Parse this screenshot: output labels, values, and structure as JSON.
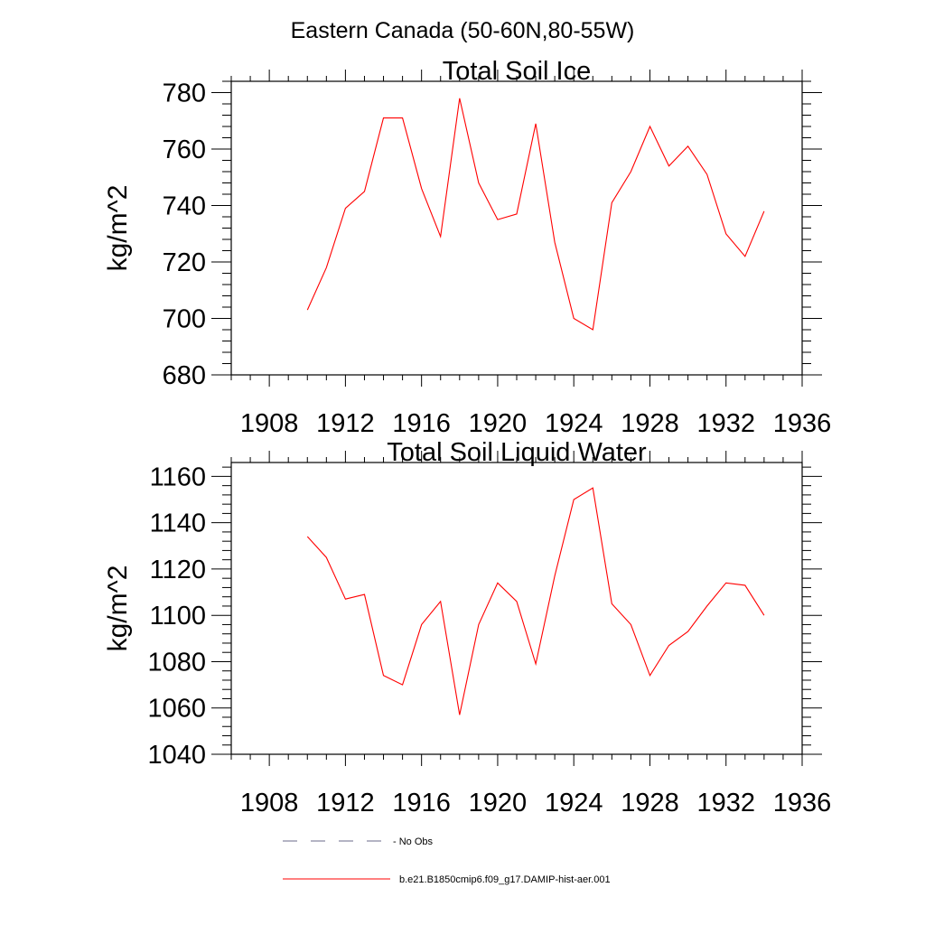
{
  "figure": {
    "title": "Eastern Canada (50-60N,80-55W)"
  },
  "legend": {
    "entries": [
      {
        "label": "- No Obs",
        "color": "#6a6a8a",
        "style": "dashed"
      },
      {
        "label": "b.e21.B1850cmip6.f09_g17.DAMIP-hist-aer.001",
        "color": "#ff0000",
        "style": "solid"
      }
    ]
  },
  "chart_data": [
    {
      "type": "line",
      "title": "Total Soil Ice",
      "ylabel": "kg/m^2",
      "xlabel": "",
      "xlim": [
        1906,
        1936
      ],
      "ylim": [
        680,
        784
      ],
      "xticks": [
        1908,
        1912,
        1916,
        1920,
        1924,
        1928,
        1932,
        1936
      ],
      "yticks": [
        680,
        700,
        720,
        740,
        760,
        780
      ],
      "series": [
        {
          "color": "#ff0000",
          "x": [
            1910,
            1911,
            1912,
            1913,
            1914,
            1915,
            1916,
            1917,
            1918,
            1919,
            1920,
            1921,
            1922,
            1923,
            1924,
            1925,
            1926,
            1927,
            1928,
            1929,
            1930,
            1931,
            1932,
            1933,
            1934
          ],
          "values": [
            703,
            718,
            739,
            745,
            771,
            771,
            746,
            729,
            778,
            748,
            735,
            737,
            769,
            727,
            700,
            696,
            741,
            752,
            768,
            754,
            761,
            751,
            730,
            722,
            738
          ]
        }
      ]
    },
    {
      "type": "line",
      "title": "Total Soil Liquid Water",
      "ylabel": "kg/m^2",
      "xlabel": "",
      "xlim": [
        1906,
        1936
      ],
      "ylim": [
        1040,
        1166
      ],
      "xticks": [
        1908,
        1912,
        1916,
        1920,
        1924,
        1928,
        1932,
        1936
      ],
      "yticks": [
        1040,
        1060,
        1080,
        1100,
        1120,
        1140,
        1160
      ],
      "series": [
        {
          "color": "#ff0000",
          "x": [
            1910,
            1911,
            1912,
            1913,
            1914,
            1915,
            1916,
            1917,
            1918,
            1919,
            1920,
            1921,
            1922,
            1923,
            1924,
            1925,
            1926,
            1927,
            1928,
            1929,
            1930,
            1931,
            1932,
            1933,
            1934
          ],
          "values": [
            1134,
            1125,
            1107,
            1109,
            1074,
            1070,
            1096,
            1106,
            1057,
            1096,
            1114,
            1106,
            1079,
            1117,
            1150,
            1155,
            1105,
            1096,
            1074,
            1087,
            1093,
            1104,
            1114,
            1113,
            1100
          ]
        }
      ]
    }
  ]
}
